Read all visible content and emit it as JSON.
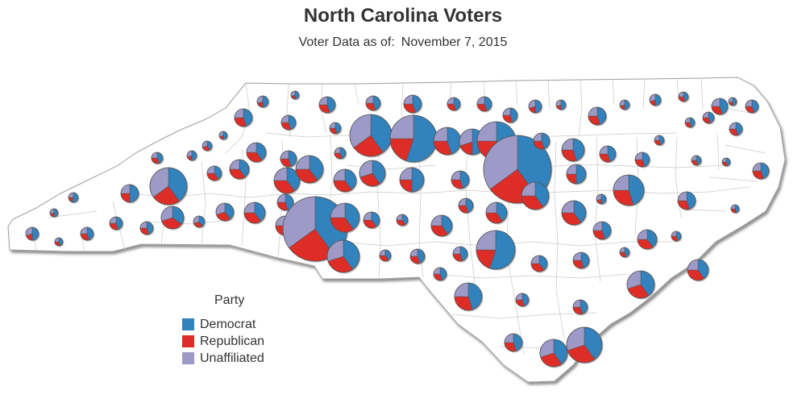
{
  "title": "North Carolina Voters",
  "subtitle": {
    "label": "Voter Data as of:",
    "date": "November 7, 2015"
  },
  "legend": {
    "title": "Party",
    "items": [
      {
        "label": "Democrat",
        "color": "#3182bd"
      },
      {
        "label": "Republican",
        "color": "#de2d26"
      },
      {
        "label": "Unaffiliated",
        "color": "#9e9ac8"
      }
    ]
  },
  "map_colors": {
    "fill": "#ffffff",
    "border": "#bdbdbd",
    "shadow": "#cccccc",
    "pie_outline": "#555555"
  }
}
